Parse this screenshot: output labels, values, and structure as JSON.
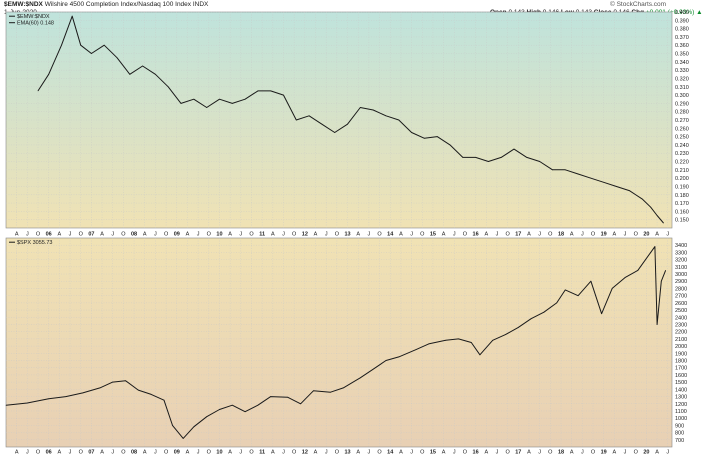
{
  "header": {
    "symbol": "$EMW:$NDX",
    "description": "Wilshire 4500 Completion Index/Nasdaq 100 Index",
    "exchange": "INDX",
    "date": "1-Jun-2020",
    "open_label": "Open",
    "open_value": "0.143",
    "high_label": "High",
    "high_value": "0.146",
    "low_label": "Low",
    "low_value": "0.143",
    "close_label": "Close",
    "close_value": "0.146",
    "chg_label": "Chg",
    "chg_value": "+0.001 (+0.93%)",
    "watermark": "© StockCharts.com",
    "up_arrow": "▲"
  },
  "chart_data": [
    {
      "type": "line",
      "panel": "top",
      "legend": [
        "$EMW:$NDX",
        "EMA(60) 0.148"
      ],
      "ylim": [
        0.14,
        0.4
      ],
      "yticks": [
        "0.400",
        "0.390",
        "0.380",
        "0.370",
        "0.360",
        "0.350",
        "0.340",
        "0.330",
        "0.320",
        "0.310",
        "0.300",
        "0.290",
        "0.280",
        "0.270",
        "0.260",
        "0.250",
        "0.240",
        "0.230",
        "0.220",
        "0.210",
        "0.200",
        "0.190",
        "0.180",
        "0.170",
        "0.160",
        "0.150"
      ],
      "x": [
        2005.75,
        2006.0,
        2006.3,
        2006.55,
        2006.75,
        2007.0,
        2007.3,
        2007.6,
        2007.9,
        2008.2,
        2008.5,
        2008.8,
        2009.1,
        2009.4,
        2009.7,
        2010.0,
        2010.3,
        2010.6,
        2010.9,
        2011.2,
        2011.5,
        2011.8,
        2012.1,
        2012.4,
        2012.7,
        2013.0,
        2013.3,
        2013.6,
        2013.9,
        2014.2,
        2014.5,
        2014.8,
        2015.1,
        2015.4,
        2015.7,
        2016.0,
        2016.3,
        2016.6,
        2016.9,
        2017.2,
        2017.5,
        2017.8,
        2018.1,
        2018.4,
        2018.7,
        2019.0,
        2019.3,
        2019.6,
        2019.9,
        2020.1,
        2020.25,
        2020.4
      ],
      "y": [
        0.305,
        0.325,
        0.36,
        0.395,
        0.36,
        0.35,
        0.36,
        0.345,
        0.325,
        0.335,
        0.325,
        0.31,
        0.29,
        0.295,
        0.285,
        0.295,
        0.29,
        0.295,
        0.305,
        0.305,
        0.3,
        0.27,
        0.275,
        0.265,
        0.255,
        0.265,
        0.285,
        0.282,
        0.275,
        0.27,
        0.255,
        0.248,
        0.25,
        0.24,
        0.225,
        0.225,
        0.22,
        0.225,
        0.235,
        0.225,
        0.22,
        0.21,
        0.21,
        0.205,
        0.2,
        0.195,
        0.19,
        0.185,
        0.175,
        0.165,
        0.155,
        0.146
      ]
    },
    {
      "type": "line",
      "panel": "bottom",
      "legend": [
        "$SPX 3055.73"
      ],
      "ylim": [
        600,
        3500
      ],
      "yticks": [
        "3400",
        "3300",
        "3200",
        "3100",
        "3000",
        "2900",
        "2800",
        "2700",
        "2600",
        "2500",
        "2400",
        "2300",
        "2200",
        "2100",
        "2000",
        "1900",
        "1800",
        "1700",
        "1600",
        "1500",
        "1400",
        "1300",
        "1200",
        "1100",
        "1000",
        "900",
        "800",
        "700"
      ],
      "x": [
        2005.0,
        2005.5,
        2006.0,
        2006.4,
        2006.8,
        2007.2,
        2007.5,
        2007.8,
        2008.1,
        2008.4,
        2008.7,
        2008.9,
        2009.15,
        2009.4,
        2009.7,
        2010.0,
        2010.3,
        2010.6,
        2010.9,
        2011.2,
        2011.6,
        2011.9,
        2012.2,
        2012.6,
        2012.9,
        2013.3,
        2013.6,
        2013.9,
        2014.2,
        2014.6,
        2014.9,
        2015.3,
        2015.6,
        2015.9,
        2016.1,
        2016.4,
        2016.7,
        2017.0,
        2017.3,
        2017.6,
        2017.9,
        2018.1,
        2018.4,
        2018.7,
        2018.95,
        2019.2,
        2019.5,
        2019.8,
        2020.1,
        2020.2,
        2020.25,
        2020.35,
        2020.45
      ],
      "y": [
        1180,
        1210,
        1270,
        1300,
        1350,
        1420,
        1500,
        1520,
        1390,
        1330,
        1250,
        900,
        720,
        880,
        1020,
        1120,
        1180,
        1090,
        1180,
        1300,
        1290,
        1200,
        1380,
        1360,
        1420,
        1560,
        1680,
        1800,
        1850,
        1950,
        2030,
        2080,
        2100,
        2050,
        1880,
        2080,
        2160,
        2260,
        2380,
        2470,
        2600,
        2780,
        2700,
        2900,
        2450,
        2800,
        2950,
        3050,
        3300,
        3380,
        2300,
        2900,
        3050
      ]
    }
  ],
  "x_axis": [
    {
      "label": "A",
      "x": 2005.25
    },
    {
      "label": "J",
      "x": 2005.5
    },
    {
      "label": "O",
      "x": 2005.75
    },
    {
      "label": "06",
      "x": 2006.0
    },
    {
      "label": "A",
      "x": 2006.25
    },
    {
      "label": "J",
      "x": 2006.5
    },
    {
      "label": "O",
      "x": 2006.75
    },
    {
      "label": "07",
      "x": 2007.0
    },
    {
      "label": "A",
      "x": 2007.25
    },
    {
      "label": "J",
      "x": 2007.5
    },
    {
      "label": "O",
      "x": 2007.75
    },
    {
      "label": "08",
      "x": 2008.0
    },
    {
      "label": "A",
      "x": 2008.25
    },
    {
      "label": "J",
      "x": 2008.5
    },
    {
      "label": "O",
      "x": 2008.75
    },
    {
      "label": "09",
      "x": 2009.0
    },
    {
      "label": "A",
      "x": 2009.25
    },
    {
      "label": "J",
      "x": 2009.5
    },
    {
      "label": "O",
      "x": 2009.75
    },
    {
      "label": "10",
      "x": 2010.0
    },
    {
      "label": "A",
      "x": 2010.25
    },
    {
      "label": "J",
      "x": 2010.5
    },
    {
      "label": "O",
      "x": 2010.75
    },
    {
      "label": "11",
      "x": 2011.0
    },
    {
      "label": "A",
      "x": 2011.25
    },
    {
      "label": "J",
      "x": 2011.5
    },
    {
      "label": "O",
      "x": 2011.75
    },
    {
      "label": "12",
      "x": 2012.0
    },
    {
      "label": "A",
      "x": 2012.25
    },
    {
      "label": "J",
      "x": 2012.5
    },
    {
      "label": "O",
      "x": 2012.75
    },
    {
      "label": "13",
      "x": 2013.0
    },
    {
      "label": "A",
      "x": 2013.25
    },
    {
      "label": "J",
      "x": 2013.5
    },
    {
      "label": "O",
      "x": 2013.75
    },
    {
      "label": "14",
      "x": 2014.0
    },
    {
      "label": "A",
      "x": 2014.25
    },
    {
      "label": "J",
      "x": 2014.5
    },
    {
      "label": "O",
      "x": 2014.75
    },
    {
      "label": "15",
      "x": 2015.0
    },
    {
      "label": "A",
      "x": 2015.25
    },
    {
      "label": "J",
      "x": 2015.5
    },
    {
      "label": "O",
      "x": 2015.75
    },
    {
      "label": "16",
      "x": 2016.0
    },
    {
      "label": "A",
      "x": 2016.25
    },
    {
      "label": "J",
      "x": 2016.5
    },
    {
      "label": "O",
      "x": 2016.75
    },
    {
      "label": "17",
      "x": 2017.0
    },
    {
      "label": "A",
      "x": 2017.25
    },
    {
      "label": "J",
      "x": 2017.5
    },
    {
      "label": "O",
      "x": 2017.75
    },
    {
      "label": "18",
      "x": 2018.0
    },
    {
      "label": "A",
      "x": 2018.25
    },
    {
      "label": "J",
      "x": 2018.5
    },
    {
      "label": "O",
      "x": 2018.75
    },
    {
      "label": "19",
      "x": 2019.0
    },
    {
      "label": "A",
      "x": 2019.25
    },
    {
      "label": "J",
      "x": 2019.5
    },
    {
      "label": "O",
      "x": 2019.75
    },
    {
      "label": "20",
      "x": 2020.0
    },
    {
      "label": "A",
      "x": 2020.25
    },
    {
      "label": "J",
      "x": 2020.5
    }
  ],
  "x_range": [
    2005.0,
    2020.6
  ],
  "colors": {
    "line": "#1a1a1a",
    "grid": "#c8c8c8",
    "bg_top_start": "#bfe3dc",
    "bg_top_end": "#f0e2b4",
    "bg_bottom_start": "#f0e2b4",
    "bg_bottom_end": "#e8d0b4",
    "up": "#0a8a2a"
  },
  "grid": true
}
